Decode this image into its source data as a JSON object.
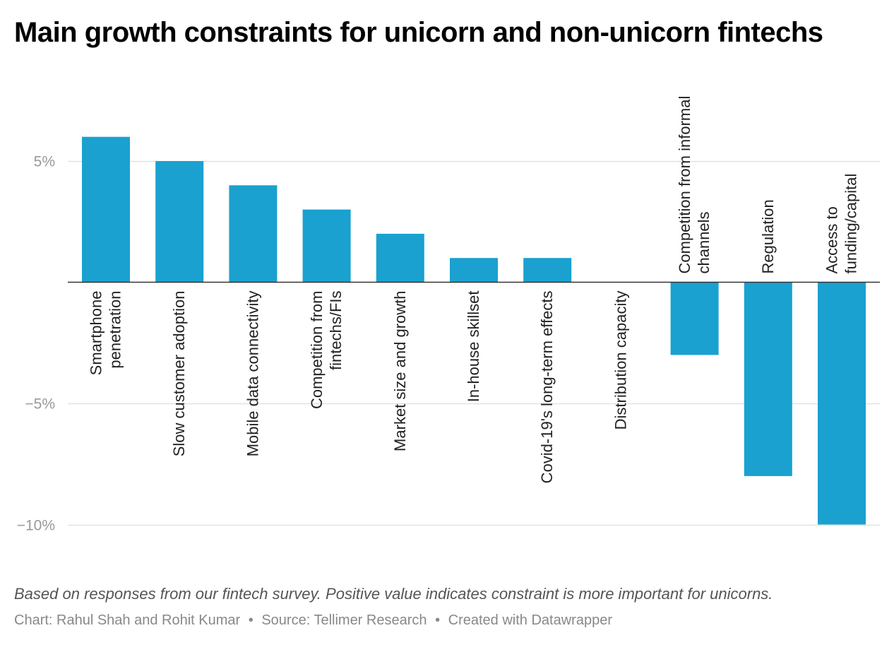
{
  "title": "Main growth constraints for unicorn and non-unicorn fintechs",
  "notes": "Based on responses from our fintech survey. Positive value indicates constraint is more important for unicorns.",
  "byline": {
    "chart": "Chart: Rahul Shah and Rohit Kumar",
    "source": "Source: Tellimer Research",
    "created": "Created with Datawrapper",
    "separator": "•"
  },
  "colors": {
    "bar": "#1aa1cf",
    "grid": "#e2e2e2",
    "baseline": "#333333",
    "tick_text": "#999999",
    "label_text": "#222222"
  },
  "chart_data": {
    "type": "bar",
    "title": "Main growth constraints for unicorn and non-unicorn fintechs",
    "xlabel": "",
    "ylabel": "",
    "ylim": [
      -10,
      10
    ],
    "y_ticks": [
      5,
      -5,
      -10
    ],
    "y_tick_labels": [
      "5%",
      "−5%",
      "−10%"
    ],
    "grid": true,
    "categories": [
      "Smartphone penetration",
      "Slow customer adoption",
      "Mobile data connectivity",
      "Competition from fintechs/FIs",
      "Market size and growth",
      "In-house skillset",
      "Covid-19's long-term effects",
      "Distribution capacity",
      "Competition from informal channels",
      "Regulation",
      "Access to funding/capital"
    ],
    "label_lines": [
      [
        "Smartphone",
        "penetration"
      ],
      [
        "Slow customer adoption"
      ],
      [
        "Mobile data connectivity"
      ],
      [
        "Competition from",
        "fintechs/FIs"
      ],
      [
        "Market size and growth"
      ],
      [
        "In-house skillset"
      ],
      [
        "Covid-19's long-term effects"
      ],
      [
        "Distribution capacity"
      ],
      [
        "Competition from informal",
        "channels"
      ],
      [
        "Regulation"
      ],
      [
        "Access to",
        "funding/capital"
      ]
    ],
    "values": [
      6,
      5,
      4,
      3,
      2,
      1,
      1,
      0,
      -3,
      -8,
      -10
    ],
    "unit": "%"
  }
}
